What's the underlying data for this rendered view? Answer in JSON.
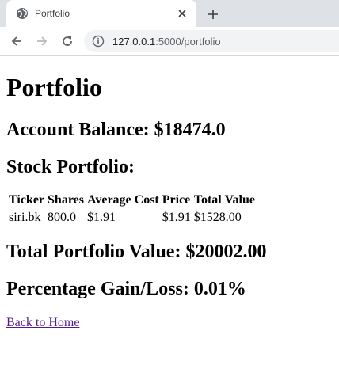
{
  "browser": {
    "tab_title": "Portfolio",
    "url_host": "127.0.0.1",
    "url_rest": ":5000/portfolio",
    "icons": {
      "favicon": "globe-icon",
      "close": "close-icon",
      "new_tab": "plus-icon",
      "back": "arrow-left-icon",
      "forward": "arrow-right-icon",
      "reload": "reload-icon",
      "info": "info-icon"
    }
  },
  "page": {
    "title": "Portfolio",
    "account_balance": "Account Balance: $18474.0",
    "stock_heading": "Stock Portfolio:",
    "table": {
      "headers": [
        "Ticker",
        "Shares",
        "Average Cost",
        "Price",
        "Total Value"
      ],
      "rows": [
        [
          "siri.bk",
          "800.0",
          "$1.91",
          "$1.91",
          "$1528.00"
        ]
      ]
    },
    "total_value": "Total Portfolio Value: $20002.00",
    "gain_loss": "Percentage Gain/Loss: 0.01%",
    "back_link": "Back to Home"
  },
  "colors": {
    "tabstrip": "#dee1e6",
    "omnibox": "#f1f3f4",
    "visited_link": "#551a8b"
  }
}
